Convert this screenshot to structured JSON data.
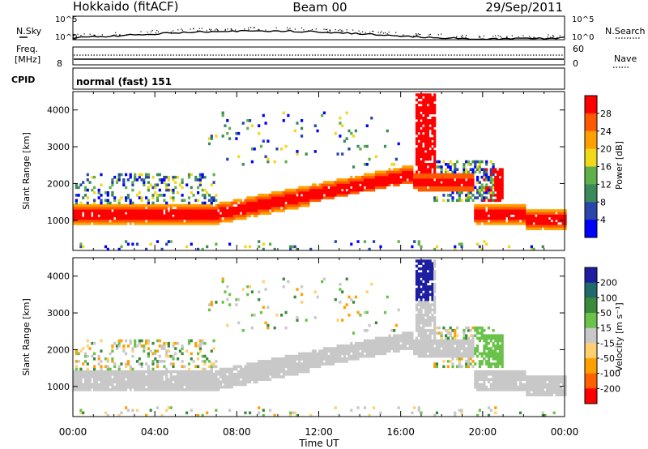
{
  "header": {
    "station": "Hokkaido (fitACF)",
    "beam": "Beam 00",
    "date": "29/Sep/2011"
  },
  "noise_panel": {
    "left_label": "N.Sky",
    "right_label": "N.Search",
    "ticks_left": [
      "10^5",
      "10^0"
    ],
    "ticks_right": [
      "10^5",
      "10^0"
    ]
  },
  "freq_panel": {
    "left_label_1": "Freq.",
    "left_label_2": "[MHz]",
    "left_tick": "8",
    "right_label": "Nave",
    "right_ticks": [
      "60",
      "0"
    ]
  },
  "cpid_panel": {
    "label": "CPID",
    "mode": "normal (fast) 151"
  },
  "colors": {
    "power": [
      "#0000ff",
      "#2a46a8",
      "#3a8a5a",
      "#5fb04a",
      "#f0d81a",
      "#ffa000",
      "#ff5a00",
      "#ff0000"
    ],
    "velocity": [
      "#1e1ea0",
      "#1f6a6a",
      "#3b8a3b",
      "#6ac24a",
      "#c8c8c8",
      "#ffd070",
      "#ffa000",
      "#ff6000",
      "#ff0000"
    ]
  },
  "chart_data": [
    {
      "type": "heatmap",
      "title": "Power",
      "xlabel": "Time UT",
      "ylabel": "Slant Range [km]",
      "xlim": [
        0,
        24
      ],
      "ylim": [
        180,
        4500
      ],
      "x_ticks": [
        "00:00",
        "04:00",
        "08:00",
        "12:00",
        "16:00",
        "20:00",
        "00:00"
      ],
      "y_ticks": [
        1000,
        2000,
        3000,
        4000
      ],
      "colorbar_label": "Power [dB]",
      "colorbar_ticks": [
        4,
        8,
        12,
        16,
        20,
        24,
        28
      ],
      "colorbar_range": [
        0,
        32
      ]
    },
    {
      "type": "heatmap",
      "title": "Velocity",
      "xlabel": "Time UT",
      "ylabel": "Slant Range [km]",
      "xlim": [
        0,
        24
      ],
      "ylim": [
        180,
        4500
      ],
      "x_ticks": [
        "00:00",
        "04:00",
        "08:00",
        "12:00",
        "16:00",
        "20:00",
        "00:00"
      ],
      "y_ticks": [
        1000,
        2000,
        3000,
        4000
      ],
      "colorbar_label": "Velocity [m s⁻¹]",
      "colorbar_ticks": [
        "200",
        "100",
        "50",
        "15",
        "-15",
        "-50",
        "-100",
        "-200"
      ]
    }
  ]
}
